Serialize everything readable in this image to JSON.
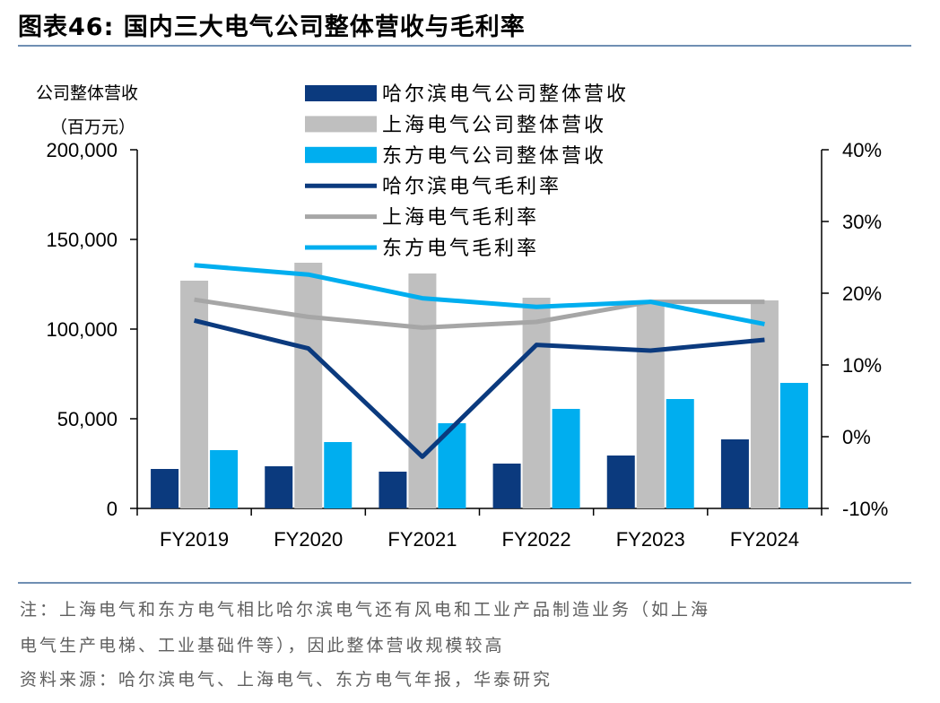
{
  "header": {
    "title": "图表46:  国内三大电气公司整体营收与毛利率"
  },
  "notes": {
    "line1": "注：上海电气和东方电气相比哈尔滨电气还有风电和工业产品制造业务（如上海",
    "line2": "电气生产电梯、工业基础件等），因此整体营收规模较高",
    "source": "资料来源：哈尔滨电气、上海电气、东方电气年报，华泰研究"
  },
  "chart_data": {
    "type": "bar",
    "categories": [
      "FY2019",
      "FY2020",
      "FY2021",
      "FY2022",
      "FY2023",
      "FY2024"
    ],
    "left_axis": {
      "label_line1": "公司整体营收",
      "label_line2": "（百万元）",
      "ylim": [
        0,
        200000
      ],
      "ticks": [
        0,
        50000,
        100000,
        150000,
        200000
      ],
      "tick_labels": [
        "0",
        "50,000",
        "100,000",
        "150,000",
        "200,000"
      ]
    },
    "right_axis": {
      "ylim": [
        -10,
        40
      ],
      "ticks": [
        -10,
        0,
        10,
        20,
        30,
        40
      ],
      "tick_labels": [
        "-10%",
        "0%",
        "10%",
        "20%",
        "30%",
        "40%"
      ]
    },
    "bar_series": [
      {
        "name": "哈尔滨电气公司整体营收",
        "color": "#0b3a7e",
        "values": [
          22000,
          23500,
          20500,
          25000,
          29500,
          38500
        ]
      },
      {
        "name": "上海电气公司整体营收",
        "color": "#bfbfbf",
        "values": [
          127000,
          137000,
          131000,
          117500,
          115000,
          116000
        ]
      },
      {
        "name": "东方电气公司整体营收",
        "color": "#00aeef",
        "values": [
          32500,
          37000,
          47500,
          55500,
          61000,
          70000
        ]
      }
    ],
    "line_series": [
      {
        "name": "哈尔滨电气毛利率",
        "color": "#0b3a7e",
        "values": [
          16.2,
          12.3,
          -2.8,
          12.8,
          12.0,
          13.5
        ]
      },
      {
        "name": "上海电气毛利率",
        "color": "#a6a6a6",
        "values": [
          19.1,
          16.7,
          15.2,
          16.0,
          18.8,
          18.8
        ]
      },
      {
        "name": "东方电气毛利率",
        "color": "#00aeef",
        "values": [
          23.9,
          22.6,
          19.3,
          18.1,
          18.8,
          15.7
        ]
      }
    ],
    "legend_position": "top-center",
    "grid": false
  }
}
